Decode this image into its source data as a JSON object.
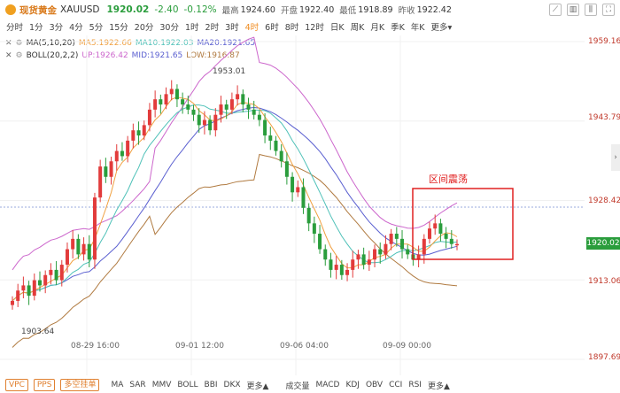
{
  "header": {
    "name": "现货黄金",
    "symbol": "XAUUSD",
    "price": "1920.02",
    "change": "-2.40",
    "change_pct": "-0.12%",
    "high_label": "最高",
    "high": "1924.60",
    "open_label": "开盘",
    "open": "1922.40",
    "low_label": "最低",
    "low": "1918.89",
    "prev_label": "昨收",
    "prev": "1922.42"
  },
  "timeframes": [
    "分时",
    "1分",
    "3分",
    "4分",
    "5分",
    "15分",
    "20分",
    "30分",
    "1时",
    "2时",
    "3时",
    "4时",
    "6时",
    "8时",
    "12时",
    "日K",
    "周K",
    "月K",
    "季K",
    "年K",
    "更多▾"
  ],
  "active_timeframe": "4时",
  "indicators": {
    "ma_name": "MA(5,10,20)",
    "ma5": "MA5:1922.66",
    "ma10": "MA10:1922.03",
    "ma20": "MA20:1921.65",
    "boll_name": "BOLL(20,2,2)",
    "up": "UP:1926.42",
    "mid": "MID:1921.65",
    "low": "LOW:1916.87"
  },
  "y_axis": [
    "1959.16",
    "1943.79",
    "1928.42",
    "1920.02",
    "1913.06",
    "1897.69"
  ],
  "x_axis": [
    "08-29 16:00",
    "09-01 12:00",
    "09-06 04:00",
    "09-09 00:00"
  ],
  "annotations": {
    "high_mark": "1953.01",
    "low_mark": "1903.64",
    "box_label": "区间震荡"
  },
  "bottom": {
    "tags": [
      "VPC",
      "PPS",
      "多空挂单"
    ],
    "main_inds": [
      "MA",
      "SAR",
      "MMV",
      "BOLL",
      "BBI",
      "DKX",
      "更多▲"
    ],
    "sub_inds": [
      "成交量",
      "MACD",
      "KDJ",
      "OBV",
      "CCI",
      "RSI",
      "更多▲"
    ]
  },
  "colors": {
    "up": "#e23b3b",
    "down": "#2a9d3c",
    "ma5": "#f0a040",
    "ma10": "#4fc1b8",
    "ma20": "#5a5fd0",
    "boll_up": "#cc66cc",
    "boll_low": "#b07a40",
    "box": "#e02020"
  }
}
